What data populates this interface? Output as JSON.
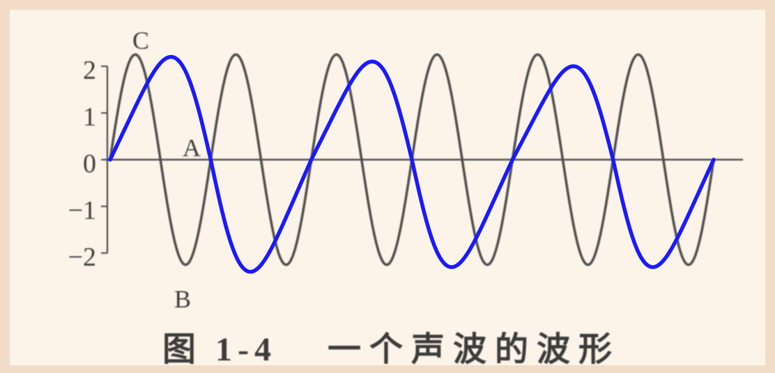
{
  "chart_data": {
    "type": "line",
    "ylim": [
      -2,
      2
    ],
    "grid": false,
    "yticks": [
      "2",
      "1",
      "0",
      "−1",
      "−2"
    ],
    "ytick_values": [
      2,
      1,
      0,
      -1,
      -2
    ],
    "series": [
      {
        "cycles": 6,
        "amplitude": 2.25,
        "color": "#505050"
      },
      {
        "cycles": 3,
        "extrema": [
          2.2,
          -2.4,
          2.1,
          -2.3,
          2.0,
          -2.3
        ],
        "color": "#1a1aff"
      }
    ],
    "annotations": [
      {
        "text": "C"
      },
      {
        "text": "A"
      },
      {
        "text": "B"
      }
    ]
  },
  "caption": {
    "number": "图 1-4",
    "title": "一个声波的波形"
  }
}
